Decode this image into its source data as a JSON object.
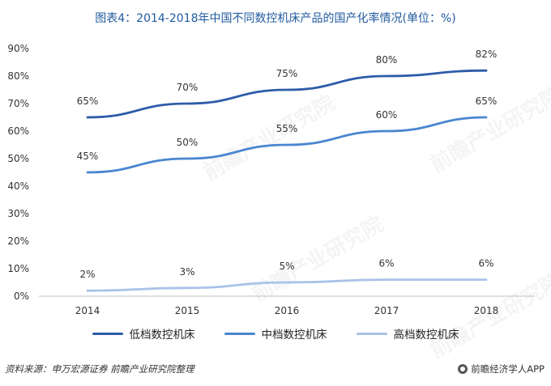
{
  "title": "图表4：2014-2018年中国不同数控机床产品的国产化率情况(单位：%)",
  "watermark": "前瞻产业研究院",
  "source": "资料来源：申万宏源证券 前瞻产业研究院整理",
  "brand": "前瞻经济学人APP",
  "chart_data": {
    "type": "line",
    "title": "图表4：2014-2018年中国不同数控机床产品的国产化率情况(单位：%)",
    "x": [
      "2014",
      "2015",
      "2016",
      "2017",
      "2018"
    ],
    "ylim": [
      0,
      90
    ],
    "yticks": [
      0,
      10,
      20,
      30,
      40,
      50,
      60,
      70,
      80,
      90
    ],
    "ytick_suffix": "%",
    "grid": false,
    "legend_position": "bottom",
    "series": [
      {
        "name": "低档数控机床",
        "values": [
          65,
          70,
          75,
          80,
          82
        ],
        "labels": [
          "65%",
          "70%",
          "75%",
          "80%",
          "82%"
        ],
        "color": "#2e5ca8"
      },
      {
        "name": "中档数控机床",
        "values": [
          45,
          50,
          55,
          60,
          65
        ],
        "labels": [
          "45%",
          "50%",
          "55%",
          "60%",
          "65%"
        ],
        "color": "#4a86d0"
      },
      {
        "name": "高档数控机床",
        "values": [
          2,
          3,
          5,
          6,
          6
        ],
        "labels": [
          "2%",
          "3%",
          "5%",
          "6%",
          "6%"
        ],
        "color": "#a9c3e8"
      }
    ]
  }
}
